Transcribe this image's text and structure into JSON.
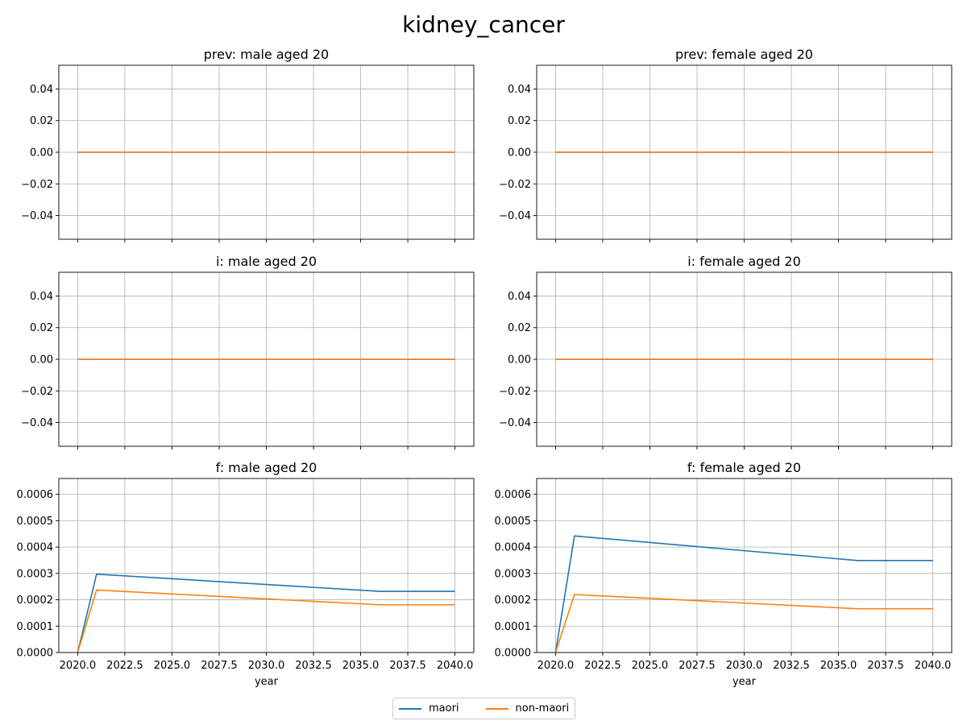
{
  "figure_title": "kidney_cancer",
  "colors": {
    "maori": "#1f77b4",
    "non_maori": "#ff7f0e",
    "grid": "#b0b0b0"
  },
  "legend": {
    "placement": "bottom-center",
    "maori": "maori",
    "non_maori": "non-maori"
  },
  "chart_data": [
    {
      "type": "line",
      "title": "prev: male aged 20",
      "xlabel": "",
      "ylabel": "",
      "xlim": [
        2019.0,
        2041.0
      ],
      "ylim": [
        -0.055,
        0.055
      ],
      "xticks": [
        2020.0,
        2022.5,
        2025.0,
        2027.5,
        2030.0,
        2032.5,
        2035.0,
        2037.5,
        2040.0
      ],
      "xtick_labels": [],
      "yticks": [
        -0.04,
        -0.02,
        0.0,
        0.02,
        0.04
      ],
      "ytick_labels": [
        "−0.04",
        "−0.02",
        "0.00",
        "0.02",
        "0.04"
      ],
      "grid": true,
      "series": [
        {
          "name": "maori",
          "color": "#1f77b4",
          "x": [
            2020,
            2040
          ],
          "y": [
            0,
            0
          ]
        },
        {
          "name": "non-maori",
          "color": "#ff7f0e",
          "x": [
            2020,
            2040
          ],
          "y": [
            0,
            0
          ]
        }
      ]
    },
    {
      "type": "line",
      "title": "prev: female aged 20",
      "xlabel": "",
      "ylabel": "",
      "xlim": [
        2019.0,
        2041.0
      ],
      "ylim": [
        -0.055,
        0.055
      ],
      "xticks": [
        2020.0,
        2022.5,
        2025.0,
        2027.5,
        2030.0,
        2032.5,
        2035.0,
        2037.5,
        2040.0
      ],
      "xtick_labels": [],
      "yticks": [
        -0.04,
        -0.02,
        0.0,
        0.02,
        0.04
      ],
      "ytick_labels": [
        "−0.04",
        "−0.02",
        "0.00",
        "0.02",
        "0.04"
      ],
      "grid": true,
      "series": [
        {
          "name": "maori",
          "color": "#1f77b4",
          "x": [
            2020,
            2040
          ],
          "y": [
            0,
            0
          ]
        },
        {
          "name": "non-maori",
          "color": "#ff7f0e",
          "x": [
            2020,
            2040
          ],
          "y": [
            0,
            0
          ]
        }
      ]
    },
    {
      "type": "line",
      "title": "i: male aged 20",
      "xlabel": "",
      "ylabel": "",
      "xlim": [
        2019.0,
        2041.0
      ],
      "ylim": [
        -0.055,
        0.055
      ],
      "xticks": [
        2020.0,
        2022.5,
        2025.0,
        2027.5,
        2030.0,
        2032.5,
        2035.0,
        2037.5,
        2040.0
      ],
      "xtick_labels": [],
      "yticks": [
        -0.04,
        -0.02,
        0.0,
        0.02,
        0.04
      ],
      "ytick_labels": [
        "−0.04",
        "−0.02",
        "0.00",
        "0.02",
        "0.04"
      ],
      "grid": true,
      "series": [
        {
          "name": "maori",
          "color": "#1f77b4",
          "x": [
            2020,
            2040
          ],
          "y": [
            0,
            0
          ]
        },
        {
          "name": "non-maori",
          "color": "#ff7f0e",
          "x": [
            2020,
            2040
          ],
          "y": [
            0,
            0
          ]
        }
      ]
    },
    {
      "type": "line",
      "title": "i: female aged 20",
      "xlabel": "",
      "ylabel": "",
      "xlim": [
        2019.0,
        2041.0
      ],
      "ylim": [
        -0.055,
        0.055
      ],
      "xticks": [
        2020.0,
        2022.5,
        2025.0,
        2027.5,
        2030.0,
        2032.5,
        2035.0,
        2037.5,
        2040.0
      ],
      "xtick_labels": [],
      "yticks": [
        -0.04,
        -0.02,
        0.0,
        0.02,
        0.04
      ],
      "ytick_labels": [
        "−0.04",
        "−0.02",
        "0.00",
        "0.02",
        "0.04"
      ],
      "grid": true,
      "series": [
        {
          "name": "maori",
          "color": "#1f77b4",
          "x": [
            2020,
            2040
          ],
          "y": [
            0,
            0
          ]
        },
        {
          "name": "non-maori",
          "color": "#ff7f0e",
          "x": [
            2020,
            2040
          ],
          "y": [
            0,
            0
          ]
        }
      ]
    },
    {
      "type": "line",
      "title": "f: male aged 20",
      "xlabel": "year",
      "ylabel": "",
      "xlim": [
        2019.0,
        2041.0
      ],
      "ylim": [
        0,
        0.00066
      ],
      "xticks": [
        2020.0,
        2022.5,
        2025.0,
        2027.5,
        2030.0,
        2032.5,
        2035.0,
        2037.5,
        2040.0
      ],
      "xtick_labels": [
        "2020.0",
        "2022.5",
        "2025.0",
        "2027.5",
        "2030.0",
        "2032.5",
        "2035.0",
        "2037.5",
        "2040.0"
      ],
      "yticks": [
        0.0,
        0.0001,
        0.0002,
        0.0003,
        0.0004,
        0.0005,
        0.0006
      ],
      "ytick_labels": [
        "0.0000",
        "0.0001",
        "0.0002",
        "0.0003",
        "0.0004",
        "0.0005",
        "0.0006"
      ],
      "grid": true,
      "series": [
        {
          "name": "maori",
          "color": "#1f77b4",
          "x": [
            2020,
            2021,
            2036,
            2040
          ],
          "y": [
            0.0,
            0.000297,
            0.000232,
            0.000232
          ]
        },
        {
          "name": "non-maori",
          "color": "#ff7f0e",
          "x": [
            2020,
            2021,
            2036,
            2040
          ],
          "y": [
            0.0,
            0.000237,
            0.000181,
            0.000181
          ]
        }
      ]
    },
    {
      "type": "line",
      "title": "f: female aged 20",
      "xlabel": "year",
      "ylabel": "",
      "xlim": [
        2019.0,
        2041.0
      ],
      "ylim": [
        0,
        0.00066
      ],
      "xticks": [
        2020.0,
        2022.5,
        2025.0,
        2027.5,
        2030.0,
        2032.5,
        2035.0,
        2037.5,
        2040.0
      ],
      "xtick_labels": [
        "2020.0",
        "2022.5",
        "2025.0",
        "2027.5",
        "2030.0",
        "2032.5",
        "2035.0",
        "2037.5",
        "2040.0"
      ],
      "yticks": [
        0.0,
        0.0001,
        0.0002,
        0.0003,
        0.0004,
        0.0005,
        0.0006
      ],
      "ytick_labels": [
        "0.0000",
        "0.0001",
        "0.0002",
        "0.0003",
        "0.0004",
        "0.0005",
        "0.0006"
      ],
      "grid": true,
      "series": [
        {
          "name": "maori",
          "color": "#1f77b4",
          "x": [
            2020,
            2021,
            2036,
            2040
          ],
          "y": [
            0.0,
            0.000442,
            0.000349,
            0.000349
          ]
        },
        {
          "name": "non-maori",
          "color": "#ff7f0e",
          "x": [
            2020,
            2021,
            2036,
            2040
          ],
          "y": [
            0.0,
            0.00022,
            0.000166,
            0.000166
          ]
        }
      ]
    }
  ]
}
